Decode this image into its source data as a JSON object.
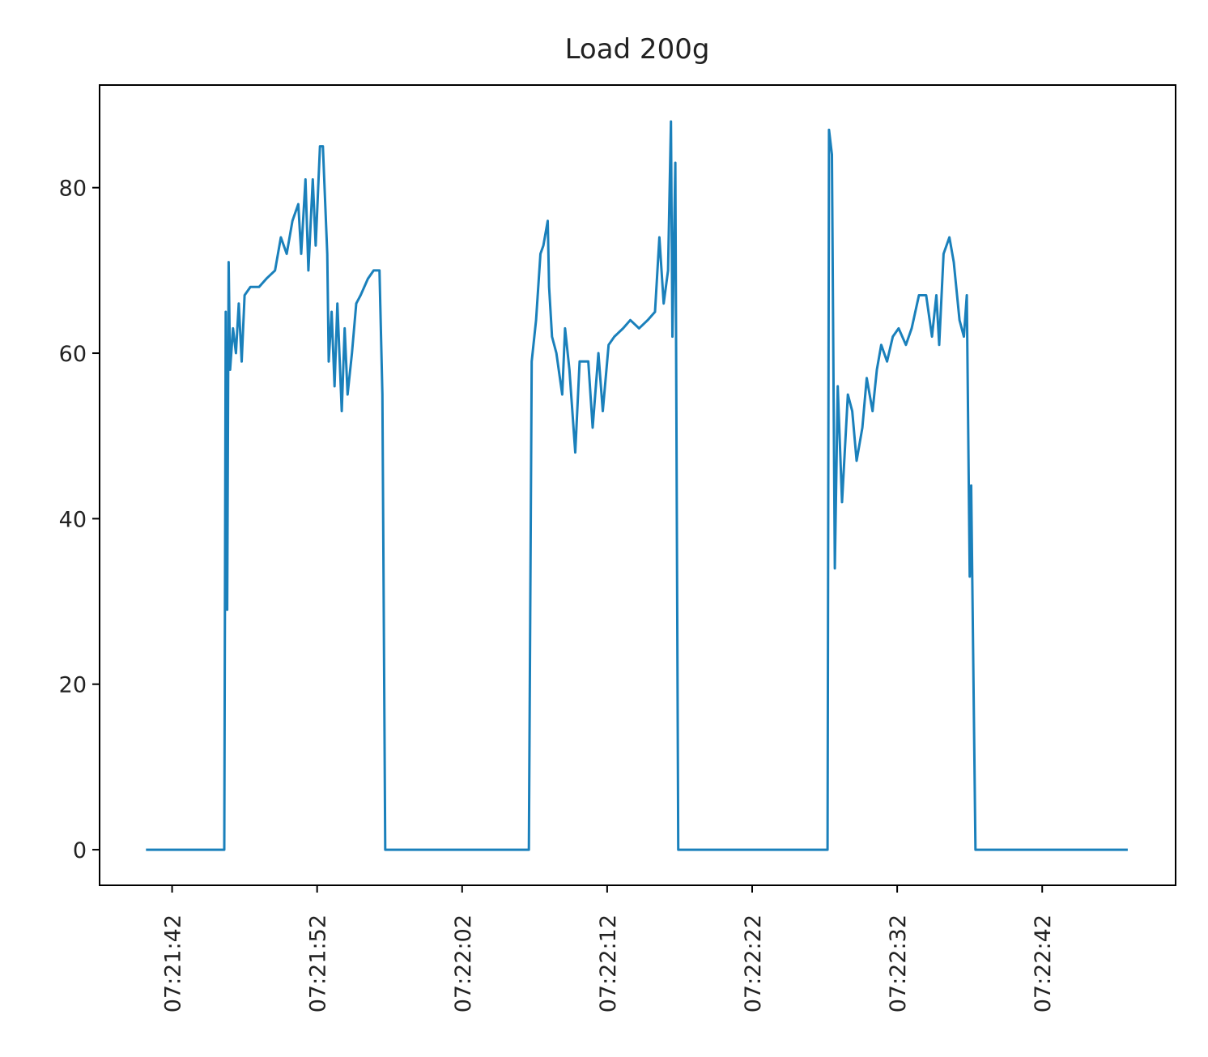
{
  "chart_data": {
    "type": "line",
    "title": "Load 200g",
    "x": [
      "07:21:40.2",
      "07:21:45.6",
      "07:21:45.7",
      "07:21:45.8",
      "07:21:45.9",
      "07:21:46.0",
      "07:21:46.2",
      "07:21:46.4",
      "07:21:46.6",
      "07:21:46.8",
      "07:21:47.0",
      "07:21:47.4",
      "07:21:48.0",
      "07:21:48.5",
      "07:21:49.1",
      "07:21:49.5",
      "07:21:49.9",
      "07:21:50.3",
      "07:21:50.7",
      "07:21:50.9",
      "07:21:51.2",
      "07:21:51.4",
      "07:21:51.7",
      "07:21:51.9",
      "07:21:52.2",
      "07:21:52.4",
      "07:21:52.7",
      "07:21:52.8",
      "07:21:53.0",
      "07:21:53.2",
      "07:21:53.4",
      "07:21:53.7",
      "07:21:53.9",
      "07:21:54.1",
      "07:21:54.4",
      "07:21:54.7",
      "07:21:55.0",
      "07:21:55.5",
      "07:21:55.9",
      "07:21:56.3",
      "07:21:56.5",
      "07:21:56.7",
      "07:22:06.6",
      "07:22:06.8",
      "07:22:07.1",
      "07:22:07.4",
      "07:22:07.6",
      "07:22:07.9",
      "07:22:08.0",
      "07:22:08.2",
      "07:22:08.5",
      "07:22:08.9",
      "07:22:09.1",
      "07:22:09.4",
      "07:22:09.8",
      "07:22:10.1",
      "07:22:10.7",
      "07:22:11.0",
      "07:22:11.4",
      "07:22:11.7",
      "07:22:12.1",
      "07:22:12.5",
      "07:22:13.1",
      "07:22:13.6",
      "07:22:14.2",
      "07:22:14.8",
      "07:22:15.3",
      "07:22:15.6",
      "07:22:15.9",
      "07:22:16.2",
      "07:22:16.4",
      "07:22:16.5",
      "07:22:16.7",
      "07:22:16.9",
      "07:22:27.2",
      "07:22:27.3",
      "07:22:27.5",
      "07:22:27.7",
      "07:22:27.9",
      "07:22:28.2",
      "07:22:28.6",
      "07:22:28.9",
      "07:22:29.2",
      "07:22:29.6",
      "07:22:29.9",
      "07:22:30.3",
      "07:22:30.6",
      "07:22:30.9",
      "07:22:31.3",
      "07:22:31.7",
      "07:22:32.1",
      "07:22:32.6",
      "07:22:33.0",
      "07:22:33.5",
      "07:22:34.0",
      "07:22:34.4",
      "07:22:34.7",
      "07:22:34.9",
      "07:22:35.2",
      "07:22:35.6",
      "07:22:35.9",
      "07:22:36.3",
      "07:22:36.6",
      "07:22:36.8",
      "07:22:37.0",
      "07:22:37.1",
      "07:22:37.4",
      "07:22:47.9"
    ],
    "series": [
      {
        "name": "Load",
        "color": "#1a80bb",
        "values": [
          0,
          0,
          65,
          29,
          71,
          58,
          63,
          60,
          66,
          59,
          67,
          68,
          68,
          69,
          70,
          74,
          72,
          76,
          78,
          72,
          81,
          70,
          81,
          73,
          85,
          85,
          72,
          59,
          65,
          56,
          66,
          53,
          63,
          55,
          60,
          66,
          67,
          69,
          70,
          70,
          55,
          0,
          0,
          59,
          64,
          72,
          73,
          76,
          68,
          62,
          60,
          55,
          63,
          58,
          48,
          59,
          59,
          51,
          60,
          53,
          61,
          62,
          63,
          64,
          63,
          64,
          65,
          74,
          66,
          70,
          88,
          62,
          83,
          0,
          0,
          87,
          84,
          34,
          56,
          42,
          55,
          53,
          47,
          51,
          57,
          53,
          58,
          61,
          59,
          62,
          63,
          61,
          63,
          67,
          67,
          62,
          67,
          61,
          72,
          74,
          71,
          64,
          62,
          67,
          33,
          44,
          0,
          0
        ]
      }
    ],
    "xlim": [
      "07:21:37.0",
      "07:22:51.2"
    ],
    "xticks": [
      "07:21:42",
      "07:21:52",
      "07:22:02",
      "07:22:12",
      "07:22:22",
      "07:22:32",
      "07:22:42"
    ],
    "ylim": [
      -4.3,
      92.4
    ],
    "yticks": [
      0,
      20,
      40,
      60,
      80
    ]
  }
}
